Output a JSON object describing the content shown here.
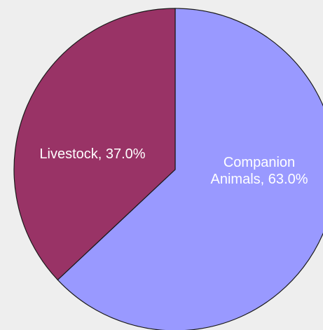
{
  "chart_data": {
    "type": "pie",
    "slices": [
      {
        "label": "Companion Animals",
        "value": 63.0,
        "color": "#9999ff",
        "label_lines": [
          "Companion",
          "Animals, 63.0%"
        ]
      },
      {
        "label": "Livestock",
        "value": 37.0,
        "color": "#993366",
        "label_lines": [
          "Livestock, 37.0%"
        ]
      }
    ],
    "start_angle": "12 o'clock",
    "direction": "clockwise",
    "legend": "none"
  }
}
